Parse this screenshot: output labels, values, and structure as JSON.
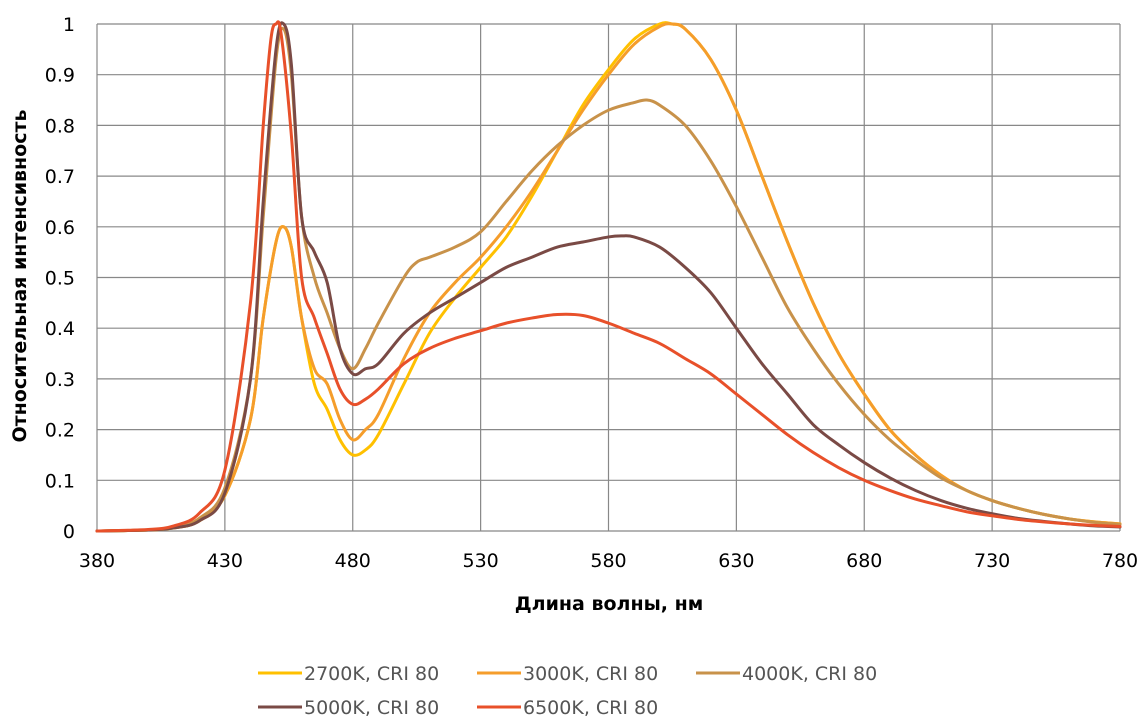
{
  "chart_data": {
    "type": "line",
    "title": "",
    "xlabel": "Длина волны, нм",
    "ylabel": "Относительная интенсивность",
    "xlim": [
      380,
      780
    ],
    "ylim": [
      0,
      1
    ],
    "x_ticks": [
      "380",
      "430",
      "480",
      "530",
      "580",
      "630",
      "680",
      "730",
      "780"
    ],
    "y_ticks": [
      "0",
      "0.1",
      "0.2",
      "0.3",
      "0.4",
      "0.5",
      "0.6",
      "0.7",
      "0.8",
      "0.9",
      "1"
    ],
    "grid": true,
    "legend_position": "bottom",
    "series": [
      {
        "name": "2700K, CRI 80",
        "color": "#FFC000",
        "points": [
          [
            380,
            0
          ],
          [
            400,
            0.002
          ],
          [
            410,
            0.006
          ],
          [
            420,
            0.02
          ],
          [
            430,
            0.07
          ],
          [
            440,
            0.22
          ],
          [
            445,
            0.42
          ],
          [
            450,
            0.57
          ],
          [
            453,
            0.6
          ],
          [
            456,
            0.56
          ],
          [
            460,
            0.42
          ],
          [
            465,
            0.29
          ],
          [
            470,
            0.24
          ],
          [
            475,
            0.18
          ],
          [
            480,
            0.15
          ],
          [
            485,
            0.16
          ],
          [
            490,
            0.19
          ],
          [
            500,
            0.29
          ],
          [
            510,
            0.39
          ],
          [
            520,
            0.46
          ],
          [
            530,
            0.52
          ],
          [
            540,
            0.58
          ],
          [
            550,
            0.66
          ],
          [
            560,
            0.75
          ],
          [
            570,
            0.84
          ],
          [
            580,
            0.91
          ],
          [
            590,
            0.97
          ],
          [
            600,
            1.0
          ],
          [
            605,
            1.0
          ],
          [
            610,
            0.99
          ],
          [
            620,
            0.93
          ],
          [
            630,
            0.83
          ],
          [
            640,
            0.7
          ],
          [
            650,
            0.57
          ],
          [
            660,
            0.45
          ],
          [
            670,
            0.35
          ],
          [
            680,
            0.27
          ],
          [
            690,
            0.2
          ],
          [
            700,
            0.15
          ],
          [
            710,
            0.11
          ],
          [
            720,
            0.08
          ],
          [
            730,
            0.06
          ],
          [
            740,
            0.045
          ],
          [
            750,
            0.033
          ],
          [
            760,
            0.024
          ],
          [
            770,
            0.018
          ],
          [
            780,
            0.014
          ]
        ]
      },
      {
        "name": "3000K, CRI 80",
        "color": "#F59D2B",
        "points": [
          [
            380,
            0
          ],
          [
            400,
            0.002
          ],
          [
            410,
            0.006
          ],
          [
            420,
            0.02
          ],
          [
            430,
            0.07
          ],
          [
            440,
            0.22
          ],
          [
            445,
            0.42
          ],
          [
            450,
            0.57
          ],
          [
            453,
            0.6
          ],
          [
            456,
            0.56
          ],
          [
            460,
            0.42
          ],
          [
            465,
            0.32
          ],
          [
            470,
            0.29
          ],
          [
            475,
            0.22
          ],
          [
            480,
            0.18
          ],
          [
            485,
            0.2
          ],
          [
            490,
            0.23
          ],
          [
            500,
            0.34
          ],
          [
            510,
            0.43
          ],
          [
            520,
            0.49
          ],
          [
            530,
            0.54
          ],
          [
            540,
            0.6
          ],
          [
            550,
            0.67
          ],
          [
            560,
            0.75
          ],
          [
            570,
            0.83
          ],
          [
            580,
            0.9
          ],
          [
            590,
            0.96
          ],
          [
            600,
            0.995
          ],
          [
            605,
            1.0
          ],
          [
            610,
            0.99
          ],
          [
            620,
            0.93
          ],
          [
            630,
            0.83
          ],
          [
            640,
            0.7
          ],
          [
            650,
            0.57
          ],
          [
            660,
            0.45
          ],
          [
            670,
            0.35
          ],
          [
            680,
            0.27
          ],
          [
            690,
            0.2
          ],
          [
            700,
            0.15
          ],
          [
            710,
            0.11
          ],
          [
            720,
            0.08
          ],
          [
            730,
            0.06
          ],
          [
            740,
            0.045
          ],
          [
            750,
            0.033
          ],
          [
            760,
            0.024
          ],
          [
            770,
            0.018
          ],
          [
            780,
            0.014
          ]
        ]
      },
      {
        "name": "4000K, CRI 80",
        "color": "#C8924A",
        "points": [
          [
            380,
            0
          ],
          [
            400,
            0.002
          ],
          [
            410,
            0.007
          ],
          [
            420,
            0.025
          ],
          [
            430,
            0.085
          ],
          [
            440,
            0.3
          ],
          [
            445,
            0.62
          ],
          [
            450,
            0.93
          ],
          [
            453,
            0.99
          ],
          [
            456,
            0.9
          ],
          [
            460,
            0.62
          ],
          [
            465,
            0.5
          ],
          [
            470,
            0.43
          ],
          [
            475,
            0.36
          ],
          [
            480,
            0.32
          ],
          [
            485,
            0.36
          ],
          [
            490,
            0.41
          ],
          [
            500,
            0.5
          ],
          [
            505,
            0.53
          ],
          [
            510,
            0.54
          ],
          [
            520,
            0.56
          ],
          [
            530,
            0.59
          ],
          [
            540,
            0.65
          ],
          [
            550,
            0.71
          ],
          [
            560,
            0.76
          ],
          [
            570,
            0.8
          ],
          [
            580,
            0.83
          ],
          [
            590,
            0.845
          ],
          [
            595,
            0.85
          ],
          [
            600,
            0.84
          ],
          [
            610,
            0.8
          ],
          [
            620,
            0.73
          ],
          [
            630,
            0.64
          ],
          [
            640,
            0.54
          ],
          [
            650,
            0.44
          ],
          [
            660,
            0.36
          ],
          [
            670,
            0.29
          ],
          [
            680,
            0.23
          ],
          [
            690,
            0.18
          ],
          [
            700,
            0.14
          ],
          [
            710,
            0.105
          ],
          [
            720,
            0.08
          ],
          [
            730,
            0.06
          ],
          [
            740,
            0.045
          ],
          [
            750,
            0.033
          ],
          [
            760,
            0.024
          ],
          [
            770,
            0.017
          ],
          [
            780,
            0.013
          ]
        ]
      },
      {
        "name": "5000K, CRI 80",
        "color": "#7A4A45",
        "points": [
          [
            380,
            0
          ],
          [
            400,
            0.002
          ],
          [
            410,
            0.006
          ],
          [
            420,
            0.02
          ],
          [
            430,
            0.075
          ],
          [
            440,
            0.3
          ],
          [
            445,
            0.65
          ],
          [
            450,
            0.95
          ],
          [
            453,
            1.0
          ],
          [
            456,
            0.92
          ],
          [
            460,
            0.62
          ],
          [
            465,
            0.55
          ],
          [
            470,
            0.49
          ],
          [
            475,
            0.36
          ],
          [
            480,
            0.31
          ],
          [
            485,
            0.32
          ],
          [
            490,
            0.33
          ],
          [
            500,
            0.39
          ],
          [
            510,
            0.43
          ],
          [
            520,
            0.46
          ],
          [
            530,
            0.49
          ],
          [
            540,
            0.52
          ],
          [
            550,
            0.54
          ],
          [
            560,
            0.56
          ],
          [
            570,
            0.57
          ],
          [
            580,
            0.58
          ],
          [
            585,
            0.582
          ],
          [
            590,
            0.58
          ],
          [
            600,
            0.56
          ],
          [
            610,
            0.52
          ],
          [
            620,
            0.47
          ],
          [
            630,
            0.4
          ],
          [
            640,
            0.33
          ],
          [
            650,
            0.27
          ],
          [
            660,
            0.21
          ],
          [
            670,
            0.17
          ],
          [
            680,
            0.135
          ],
          [
            690,
            0.105
          ],
          [
            700,
            0.08
          ],
          [
            710,
            0.06
          ],
          [
            720,
            0.045
          ],
          [
            730,
            0.034
          ],
          [
            740,
            0.025
          ],
          [
            750,
            0.019
          ],
          [
            760,
            0.014
          ],
          [
            770,
            0.01
          ],
          [
            780,
            0.008
          ]
        ]
      },
      {
        "name": "6500K, CRI 80",
        "color": "#E8502A",
        "points": [
          [
            380,
            0
          ],
          [
            400,
            0.003
          ],
          [
            410,
            0.01
          ],
          [
            420,
            0.035
          ],
          [
            430,
            0.12
          ],
          [
            440,
            0.45
          ],
          [
            445,
            0.8
          ],
          [
            448,
            0.97
          ],
          [
            450,
            1.0
          ],
          [
            452,
            0.98
          ],
          [
            456,
            0.78
          ],
          [
            460,
            0.5
          ],
          [
            465,
            0.42
          ],
          [
            470,
            0.35
          ],
          [
            475,
            0.28
          ],
          [
            480,
            0.25
          ],
          [
            485,
            0.26
          ],
          [
            490,
            0.28
          ],
          [
            500,
            0.33
          ],
          [
            510,
            0.36
          ],
          [
            520,
            0.38
          ],
          [
            530,
            0.395
          ],
          [
            540,
            0.41
          ],
          [
            550,
            0.42
          ],
          [
            560,
            0.427
          ],
          [
            570,
            0.425
          ],
          [
            580,
            0.41
          ],
          [
            590,
            0.39
          ],
          [
            600,
            0.37
          ],
          [
            610,
            0.34
          ],
          [
            620,
            0.31
          ],
          [
            630,
            0.27
          ],
          [
            640,
            0.23
          ],
          [
            650,
            0.19
          ],
          [
            660,
            0.155
          ],
          [
            670,
            0.125
          ],
          [
            680,
            0.1
          ],
          [
            690,
            0.08
          ],
          [
            700,
            0.063
          ],
          [
            710,
            0.05
          ],
          [
            720,
            0.038
          ],
          [
            730,
            0.03
          ],
          [
            740,
            0.023
          ],
          [
            750,
            0.018
          ],
          [
            760,
            0.014
          ],
          [
            770,
            0.011
          ],
          [
            780,
            0.009
          ]
        ]
      }
    ]
  }
}
